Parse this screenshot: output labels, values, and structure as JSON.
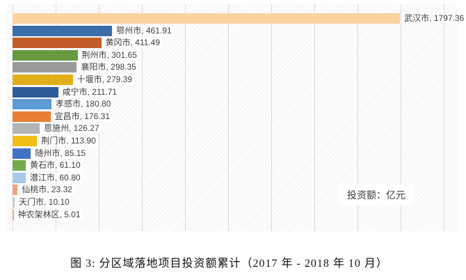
{
  "chart_data": {
    "type": "bar",
    "orientation": "horizontal",
    "title": "图 3: 分区域落地项目投资额累计（2017 年 - 2018 年 10 月）",
    "annotation": "投资额：亿元",
    "categories": [
      "武汉市",
      "鄂州市",
      "黄冈市",
      "荆州市",
      "襄阳市",
      "十堰市",
      "咸宁市",
      "孝感市",
      "宜昌市",
      "恩施州",
      "荆门市",
      "随州市",
      "黄石市",
      "潜江市",
      "仙桃市",
      "天门市",
      "神农架林区"
    ],
    "values": [
      1797.36,
      461.91,
      411.49,
      301.65,
      298.35,
      279.39,
      211.71,
      180.8,
      176.31,
      126.27,
      113.9,
      85.15,
      61.1,
      60.8,
      23.32,
      10.1,
      5.01
    ],
    "bar_colors": [
      "#FAD39E",
      "#3D6DA9",
      "#C15C28",
      "#68993F",
      "#9B9B9B",
      "#E2AE1B",
      "#2D5A99",
      "#5C9BD3",
      "#E87E33",
      "#B2B3B5",
      "#F2BE13",
      "#4273C4",
      "#6FAC49",
      "#A6C9E8",
      "#F2A282",
      "#C3C9CF",
      "#EBA28D"
    ],
    "value_label_format": "category, value",
    "xlim": [
      0,
      2000
    ],
    "gridline_interval": 200,
    "grid": true,
    "legend_position": "none",
    "background_pattern": "diagonal-hatch"
  }
}
